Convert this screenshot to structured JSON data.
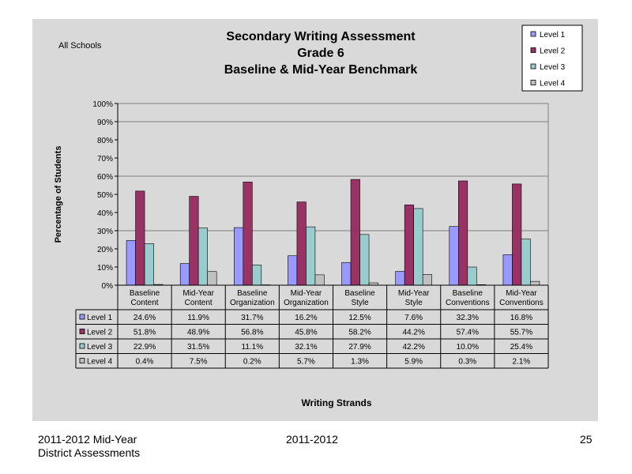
{
  "chart_data": {
    "type": "bar",
    "title": [
      "Secondary Writing Assessment",
      "Grade 6",
      "Baseline & Mid-Year Benchmark"
    ],
    "subtitle": "All Schools",
    "xlabel": "Writing Strands",
    "ylabel": "Percentage of Students",
    "ylim": [
      0,
      100
    ],
    "y_ticks": [
      "0%",
      "10%",
      "20%",
      "30%",
      "40%",
      "50%",
      "60%",
      "70%",
      "80%",
      "90%",
      "100%"
    ],
    "categories": [
      [
        "Baseline",
        "Content"
      ],
      [
        "Mid-Year",
        "Content"
      ],
      [
        "Baseline",
        "Organization"
      ],
      [
        "Mid-Year",
        "Organization"
      ],
      [
        "Baseline",
        "Style"
      ],
      [
        "Mid-Year",
        "Style"
      ],
      [
        "Baseline",
        "Conventions"
      ],
      [
        "Mid-Year",
        "Conventions"
      ]
    ],
    "series": [
      {
        "name": "Level 1",
        "color": "#9999ff",
        "values": [
          24.6,
          11.9,
          31.7,
          16.2,
          12.5,
          7.6,
          32.3,
          16.8
        ],
        "labels": [
          "24.6%",
          "11.9%",
          "31.7%",
          "16.2%",
          "12.5%",
          "7.6%",
          "32.3%",
          "16.8%"
        ]
      },
      {
        "name": "Level 2",
        "color": "#993366",
        "values": [
          51.8,
          48.9,
          56.8,
          45.8,
          58.2,
          44.2,
          57.4,
          55.7
        ],
        "labels": [
          "51.8%",
          "48.9%",
          "56.8%",
          "45.8%",
          "58.2%",
          "44.2%",
          "57.4%",
          "55.7%"
        ]
      },
      {
        "name": "Level 3",
        "color": "#99cccc",
        "values": [
          22.9,
          31.5,
          11.1,
          32.1,
          27.9,
          42.2,
          10.0,
          25.4
        ],
        "labels": [
          "22.9%",
          "31.5%",
          "11.1%",
          "32.1%",
          "27.9%",
          "42.2%",
          "10.0%",
          "25.4%"
        ]
      },
      {
        "name": "Level 4",
        "color": "#c0c0c0",
        "values": [
          0.4,
          7.5,
          0.2,
          5.7,
          1.3,
          5.9,
          0.3,
          2.1
        ],
        "labels": [
          "0.4%",
          "7.5%",
          "0.2%",
          "5.7%",
          "1.3%",
          "5.9%",
          "0.3%",
          "2.1%"
        ]
      }
    ],
    "legend_position": "top-right",
    "grid": true,
    "data_table": true
  },
  "footer": {
    "left_line1": "2011-2012  Mid-Year",
    "left_line2": "District Assessments",
    "center": "2011-2012",
    "page_number": "25"
  }
}
